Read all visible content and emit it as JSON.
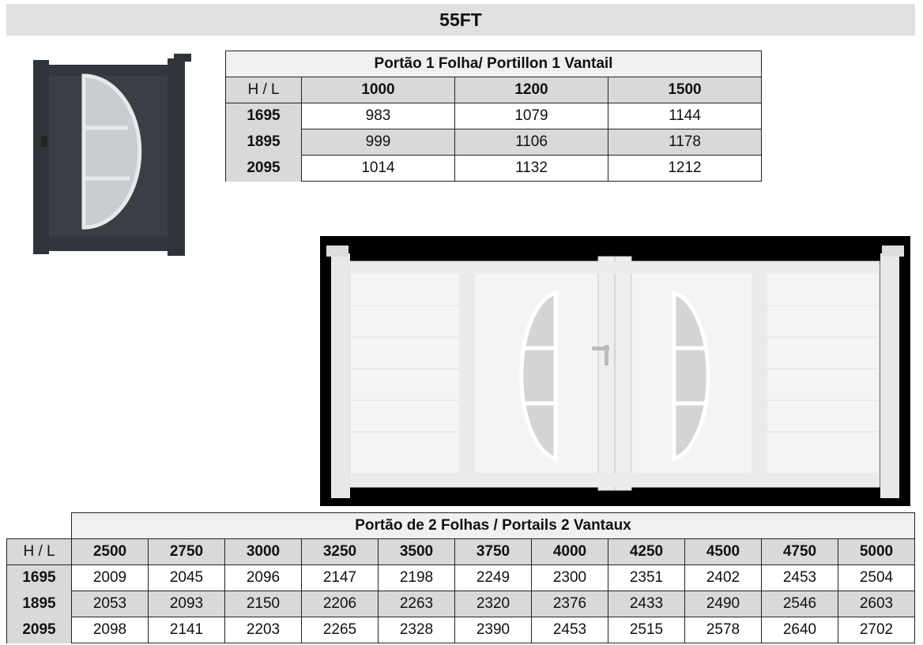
{
  "title": "55FT",
  "single_gate_table": {
    "caption": "Portão 1 Folha/ Portillon 1 Vantail",
    "corner": "H  /  L",
    "columns": [
      "1000",
      "1200",
      "1500"
    ],
    "rows": [
      {
        "h": "1695",
        "values": [
          "983",
          "1079",
          "1144"
        ]
      },
      {
        "h": "1895",
        "values": [
          "999",
          "1106",
          "1178"
        ]
      },
      {
        "h": "2095",
        "values": [
          "1014",
          "1132",
          "1212"
        ]
      }
    ]
  },
  "double_gate_table": {
    "caption": "Portão de 2 Folhas / Portails 2 Vantaux",
    "corner": "H  /  L",
    "columns": [
      "2500",
      "2750",
      "3000",
      "3250",
      "3500",
      "3750",
      "4000",
      "4250",
      "4500",
      "4750",
      "5000"
    ],
    "rows": [
      {
        "h": "1695",
        "values": [
          "2009",
          "2045",
          "2096",
          "2147",
          "2198",
          "2249",
          "2300",
          "2351",
          "2402",
          "2453",
          "2504"
        ]
      },
      {
        "h": "1895",
        "values": [
          "2053",
          "2093",
          "2150",
          "2206",
          "2263",
          "2320",
          "2376",
          "2433",
          "2490",
          "2546",
          "2603"
        ]
      },
      {
        "h": "2095",
        "values": [
          "2098",
          "2141",
          "2203",
          "2265",
          "2328",
          "2390",
          "2453",
          "2515",
          "2578",
          "2640",
          "2702"
        ]
      }
    ]
  },
  "colors": {
    "single_gate": "#3a3f46",
    "double_gate": "#f2f2f2",
    "image_background": "#000000",
    "header_fill": "#d9d9d9"
  }
}
